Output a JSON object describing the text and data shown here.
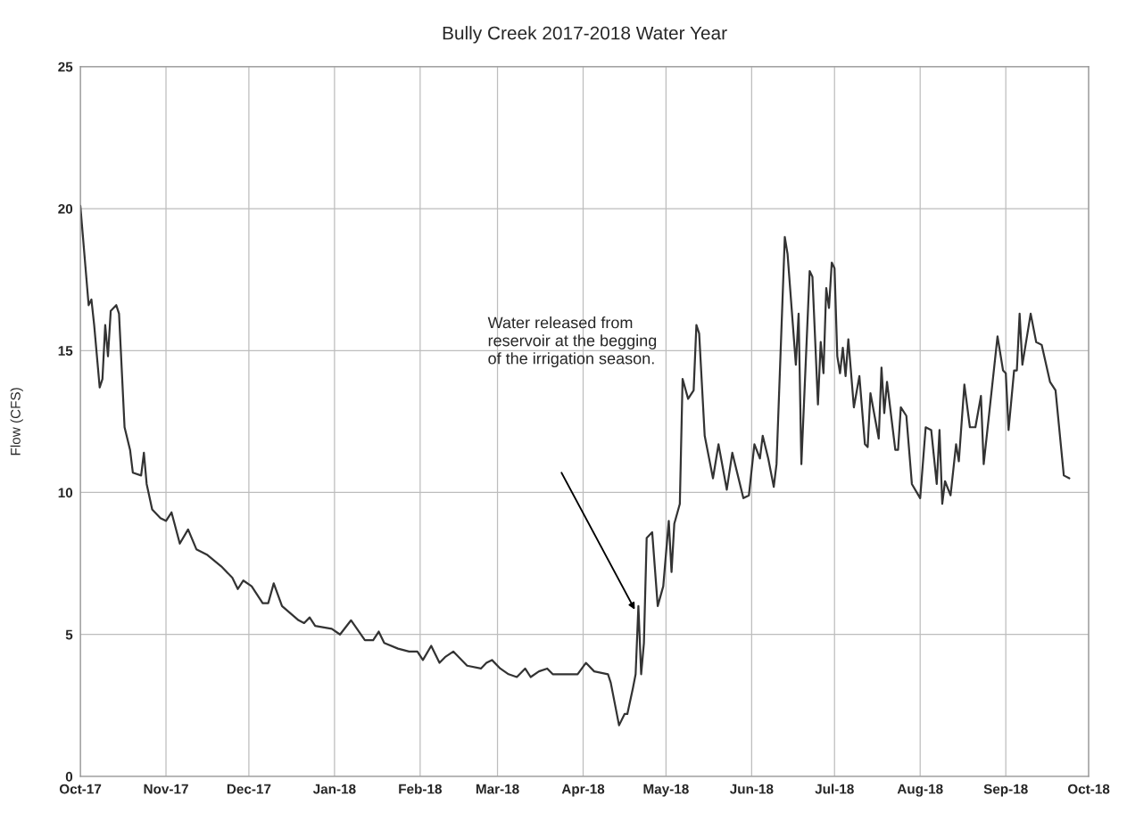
{
  "chart_data": {
    "type": "line",
    "title": "Bully Creek 2017-2018 Water Year",
    "ylabel": "Flow (CFS)",
    "x": [
      "2017-10-01",
      "2017-10-04",
      "2017-10-05",
      "2017-10-06",
      "2017-10-08",
      "2017-10-09",
      "2017-10-10",
      "2017-10-11",
      "2017-10-12",
      "2017-10-14",
      "2017-10-15",
      "2017-10-17",
      "2017-10-19",
      "2017-10-20",
      "2017-10-23",
      "2017-10-24",
      "2017-10-25",
      "2017-10-27",
      "2017-10-30",
      "2017-11-01",
      "2017-11-03",
      "2017-11-06",
      "2017-11-09",
      "2017-11-12",
      "2017-11-16",
      "2017-11-21",
      "2017-11-25",
      "2017-11-27",
      "2017-11-29",
      "2017-12-02",
      "2017-12-06",
      "2017-12-08",
      "2017-12-10",
      "2017-12-13",
      "2017-12-19",
      "2017-12-21",
      "2017-12-23",
      "2017-12-25",
      "2017-12-31",
      "2018-01-03",
      "2018-01-07",
      "2018-01-12",
      "2018-01-15",
      "2018-01-17",
      "2018-01-19",
      "2018-01-24",
      "2018-01-28",
      "2018-01-31",
      "2018-02-02",
      "2018-02-05",
      "2018-02-08",
      "2018-02-10",
      "2018-02-13",
      "2018-02-14",
      "2018-02-18",
      "2018-02-23",
      "2018-02-25",
      "2018-02-27",
      "2018-03-02",
      "2018-03-05",
      "2018-03-08",
      "2018-03-11",
      "2018-03-13",
      "2018-03-16",
      "2018-03-19",
      "2018-03-21",
      "2018-03-30",
      "2018-04-02",
      "2018-04-05",
      "2018-04-10",
      "2018-04-11",
      "2018-04-14",
      "2018-04-16",
      "2018-04-17",
      "2018-04-19",
      "2018-04-20",
      "2018-04-21",
      "2018-04-22",
      "2018-04-23",
      "2018-04-24",
      "2018-04-26",
      "2018-04-28",
      "2018-04-30",
      "2018-05-02",
      "2018-05-03",
      "2018-05-04",
      "2018-05-06",
      "2018-05-07",
      "2018-05-09",
      "2018-05-11",
      "2018-05-12",
      "2018-05-13",
      "2018-05-15",
      "2018-05-18",
      "2018-05-20",
      "2018-05-23",
      "2018-05-25",
      "2018-05-29",
      "2018-05-31",
      "2018-06-02",
      "2018-06-04",
      "2018-06-05",
      "2018-06-07",
      "2018-06-09",
      "2018-06-10",
      "2018-06-13",
      "2018-06-14",
      "2018-06-17",
      "2018-06-18",
      "2018-06-19",
      "2018-06-22",
      "2018-06-23",
      "2018-06-25",
      "2018-06-26",
      "2018-06-27",
      "2018-06-28",
      "2018-06-29",
      "2018-06-30",
      "2018-07-01",
      "2018-07-02",
      "2018-07-03",
      "2018-07-04",
      "2018-07-05",
      "2018-07-06",
      "2018-07-08",
      "2018-07-10",
      "2018-07-12",
      "2018-07-13",
      "2018-07-14",
      "2018-07-17",
      "2018-07-18",
      "2018-07-19",
      "2018-07-20",
      "2018-07-23",
      "2018-07-24",
      "2018-07-25",
      "2018-07-27",
      "2018-07-29",
      "2018-08-01",
      "2018-08-03",
      "2018-08-05",
      "2018-08-07",
      "2018-08-08",
      "2018-08-09",
      "2018-08-10",
      "2018-08-12",
      "2018-08-14",
      "2018-08-15",
      "2018-08-17",
      "2018-08-19",
      "2018-08-21",
      "2018-08-23",
      "2018-08-24",
      "2018-08-29",
      "2018-08-31",
      "2018-09-01",
      "2018-09-02",
      "2018-09-04",
      "2018-09-05",
      "2018-09-06",
      "2018-09-07",
      "2018-09-10",
      "2018-09-12",
      "2018-09-14",
      "2018-09-17",
      "2018-09-19",
      "2018-09-22",
      "2018-09-24"
    ],
    "series": [
      {
        "color": "#333333",
        "values": [
          20.1,
          16.6,
          16.8,
          15.9,
          13.7,
          14.0,
          15.9,
          14.8,
          16.4,
          16.6,
          16.3,
          12.3,
          11.5,
          10.7,
          10.6,
          11.4,
          10.3,
          9.4,
          9.1,
          9.0,
          9.3,
          8.2,
          8.7,
          8.0,
          7.8,
          7.4,
          7.0,
          6.6,
          6.9,
          6.7,
          6.1,
          6.1,
          6.8,
          6.0,
          5.5,
          5.4,
          5.6,
          5.3,
          5.2,
          5.0,
          5.5,
          4.8,
          4.8,
          5.1,
          4.7,
          4.5,
          4.4,
          4.4,
          4.1,
          4.6,
          4.0,
          4.2,
          4.4,
          4.3,
          3.9,
          3.8,
          4.0,
          4.1,
          3.8,
          3.6,
          3.5,
          3.8,
          3.5,
          3.7,
          3.8,
          3.6,
          3.6,
          4.0,
          3.7,
          3.6,
          3.3,
          1.8,
          2.2,
          2.2,
          3.1,
          3.6,
          6.0,
          3.6,
          4.7,
          8.4,
          8.6,
          6.0,
          6.7,
          9.0,
          7.2,
          8.9,
          9.6,
          14.0,
          13.3,
          13.6,
          15.9,
          15.6,
          12.0,
          10.5,
          11.7,
          10.1,
          11.4,
          9.8,
          9.9,
          11.7,
          11.2,
          12.0,
          11.2,
          10.2,
          11.0,
          19.0,
          18.4,
          14.5,
          16.3,
          11.0,
          17.8,
          17.6,
          13.1,
          15.3,
          14.2,
          17.2,
          16.5,
          18.1,
          17.9,
          14.8,
          14.2,
          15.1,
          14.1,
          15.4,
          13.0,
          14.1,
          11.7,
          11.6,
          13.5,
          11.9,
          14.4,
          12.8,
          13.9,
          11.5,
          11.5,
          13.0,
          12.7,
          10.3,
          9.8,
          12.3,
          12.2,
          10.3,
          12.2,
          9.6,
          10.4,
          9.9,
          11.7,
          11.1,
          13.8,
          12.3,
          12.3,
          13.4,
          11.0,
          15.5,
          14.3,
          14.2,
          12.2,
          14.3,
          14.3,
          16.3,
          14.5,
          16.3,
          15.3,
          15.2,
          13.9,
          13.6,
          10.6,
          10.5
        ]
      }
    ],
    "xlim": [
      "2017-10-01",
      "2018-10-01"
    ],
    "xticks": [
      {
        "value": "2017-10-01",
        "label": "Oct-17"
      },
      {
        "value": "2017-11-01",
        "label": "Nov-17"
      },
      {
        "value": "2017-12-01",
        "label": "Dec-17"
      },
      {
        "value": "2018-01-01",
        "label": "Jan-18"
      },
      {
        "value": "2018-02-01",
        "label": "Feb-18"
      },
      {
        "value": "2018-03-01",
        "label": "Mar-18"
      },
      {
        "value": "2018-04-01",
        "label": "Apr-18"
      },
      {
        "value": "2018-05-01",
        "label": "May-18"
      },
      {
        "value": "2018-06-01",
        "label": "Jun-18"
      },
      {
        "value": "2018-07-01",
        "label": "Jul-18"
      },
      {
        "value": "2018-08-01",
        "label": "Aug-18"
      },
      {
        "value": "2018-09-01",
        "label": "Sep-18"
      },
      {
        "value": "2018-10-01",
        "label": "Oct-18"
      }
    ],
    "ylim": [
      0,
      25
    ],
    "yticks": [
      0,
      5,
      10,
      15,
      20,
      25
    ],
    "grid": true,
    "annotations": [
      "Water released from\nreservoir at the begging\nof the irrigation season."
    ]
  }
}
